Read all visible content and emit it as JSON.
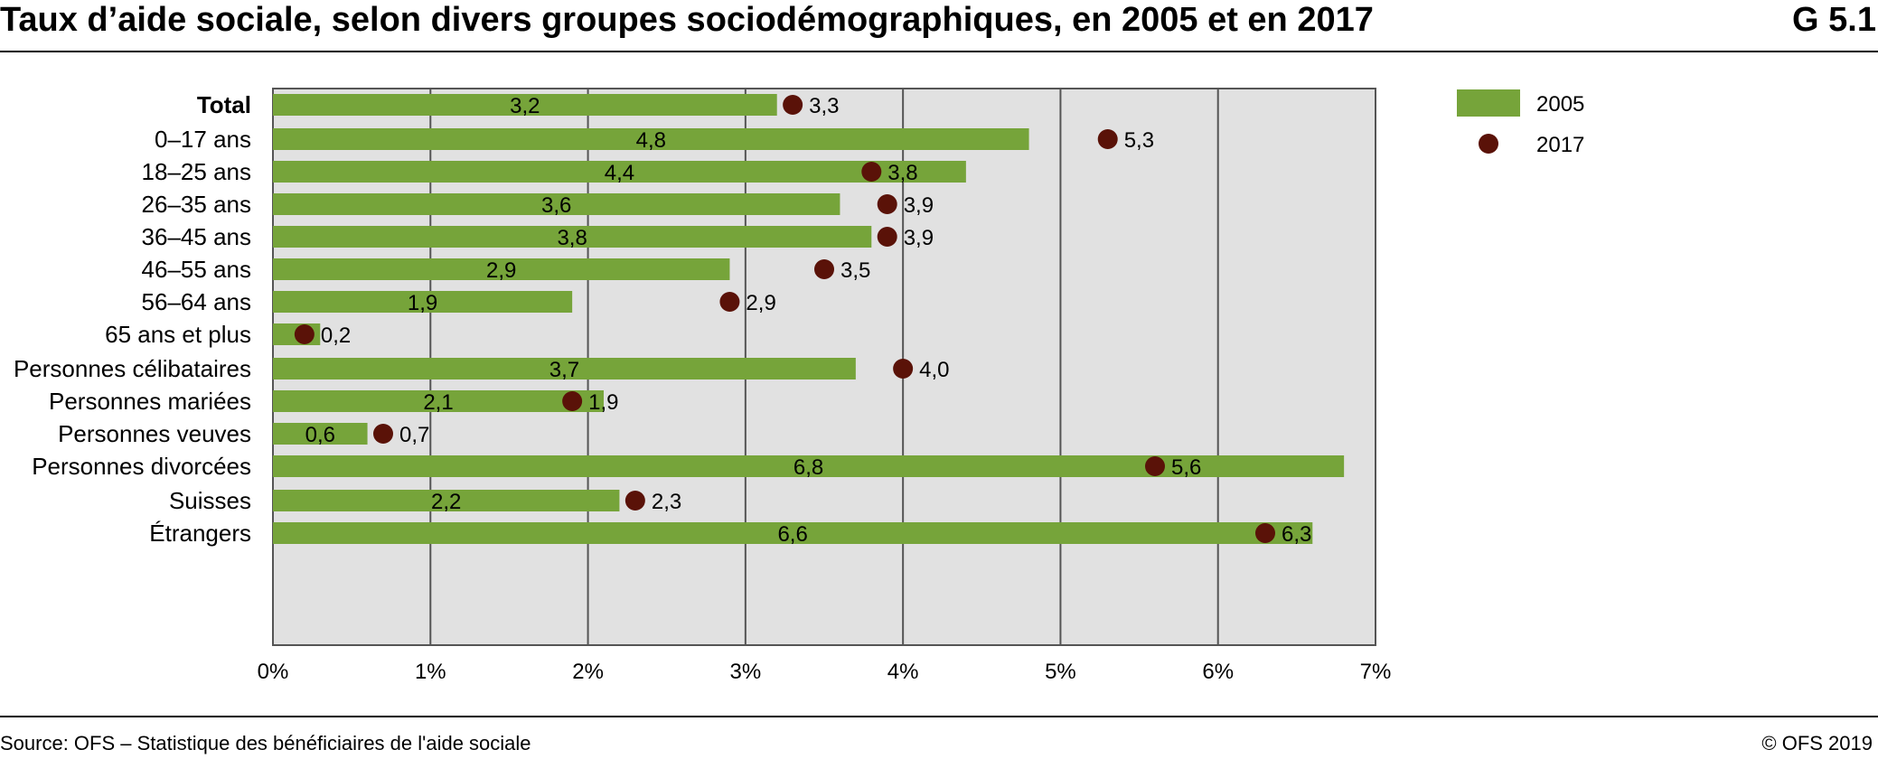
{
  "header": {
    "title": "Taux d’aide sociale, selon divers groupes sociodémographiques, en 2005 et en 2017",
    "code": "G 5.1"
  },
  "footer": {
    "source": "Source: OFS – Statistique des bénéficiaires de l'aide sociale",
    "copyright": "© OFS 2019"
  },
  "colors": {
    "bar": "#76a43a",
    "dot": "#5a1208",
    "plot_bg": "#e1e1e1",
    "grid": "#555555"
  },
  "chart_data": {
    "type": "bar",
    "orientation": "horizontal",
    "categories": [
      "Total",
      "0–17 ans",
      "18–25 ans",
      "26–35 ans",
      "36–45 ans",
      "46–55 ans",
      "56–64 ans",
      "65 ans et plus",
      "Personnes célibataires",
      "Personnes mariées",
      "Personnes veuves",
      "Personnes divorcées",
      "Suisses",
      "Étrangers"
    ],
    "bold_categories": [
      "Total"
    ],
    "groups": [
      [
        0
      ],
      [
        1,
        2,
        3,
        4,
        5,
        6,
        7
      ],
      [
        8,
        9,
        10,
        11
      ],
      [
        12,
        13
      ]
    ],
    "series": [
      {
        "name": "2005",
        "type": "bar",
        "values": [
          3.2,
          4.8,
          4.4,
          3.6,
          3.8,
          2.9,
          1.9,
          0.3,
          3.7,
          2.1,
          0.6,
          6.8,
          2.2,
          6.6
        ],
        "labels": [
          "3,2",
          "4,8",
          "4,4",
          "3,6",
          "3,8",
          "2,9",
          "1,9",
          "",
          "3,7",
          "2,1",
          "0,6",
          "6,8",
          "2,2",
          "6,6"
        ]
      },
      {
        "name": "2017",
        "type": "dot",
        "values": [
          3.3,
          5.3,
          3.8,
          3.9,
          3.9,
          3.5,
          2.9,
          0.2,
          4.0,
          1.9,
          0.7,
          5.6,
          2.3,
          6.3
        ],
        "labels": [
          "3,3",
          "5,3",
          "3,8",
          "3,9",
          "3,9",
          "3,5",
          "2,9",
          "0,2",
          "4,0",
          "1,9",
          "0,7",
          "5,6",
          "2,3",
          "6,3"
        ]
      }
    ],
    "xlim": [
      0,
      7
    ],
    "xticks": [
      0,
      1,
      2,
      3,
      4,
      5,
      6,
      7
    ],
    "xtick_labels": [
      "0%",
      "1%",
      "2%",
      "3%",
      "4%",
      "5%",
      "6%",
      "7%"
    ],
    "grid": true,
    "legend": "top-right"
  }
}
